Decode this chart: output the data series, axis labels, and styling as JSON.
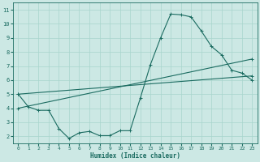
{
  "xlabel": "Humidex (Indice chaleur)",
  "bg_color": "#cce8e4",
  "grid_color": "#a8d5cc",
  "line_color": "#1a6b60",
  "xlim": [
    -0.5,
    23.5
  ],
  "ylim": [
    1.5,
    11.5
  ],
  "xticks": [
    0,
    1,
    2,
    3,
    4,
    5,
    6,
    7,
    8,
    9,
    10,
    11,
    12,
    13,
    14,
    15,
    16,
    17,
    18,
    19,
    20,
    21,
    22,
    23
  ],
  "yticks": [
    2,
    3,
    4,
    5,
    6,
    7,
    8,
    9,
    10,
    11
  ],
  "line1_x": [
    0,
    1,
    2,
    3,
    4,
    5,
    6,
    7,
    8,
    9,
    10,
    11,
    12,
    13,
    14,
    15,
    16,
    17,
    18,
    19,
    20,
    21,
    22,
    23
  ],
  "line1_y": [
    5.0,
    4.1,
    3.85,
    3.85,
    2.55,
    1.85,
    2.25,
    2.35,
    2.05,
    2.05,
    2.4,
    2.4,
    4.7,
    7.1,
    9.0,
    10.7,
    10.65,
    10.5,
    9.5,
    8.4,
    7.8,
    6.7,
    6.5,
    6.0
  ]
}
